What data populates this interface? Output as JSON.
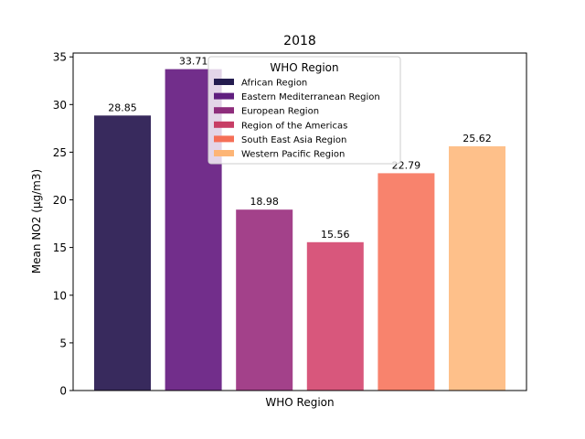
{
  "chart_data": {
    "type": "bar",
    "title": "2018",
    "xlabel": "WHO Region",
    "ylabel": "Mean NO2 (μg/m3)",
    "ylim": [
      0,
      35.4
    ],
    "yticks": [
      0,
      5,
      10,
      15,
      20,
      25,
      30,
      35
    ],
    "grid": false,
    "categories": [
      "African Region",
      "Eastern Mediterranean Region",
      "European Region",
      "Region of the Americas",
      "South East Asia Region",
      "Western Pacific Region"
    ],
    "values": [
      28.85,
      33.71,
      18.98,
      15.56,
      22.79,
      25.62
    ],
    "value_labels": [
      "28.85",
      "33.71",
      "18.98",
      "15.56",
      "22.79",
      "25.62"
    ],
    "bar_colors": [
      "#382a5d",
      "#722e8b",
      "#a3418a",
      "#d8577c",
      "#f8836d",
      "#fec08a"
    ],
    "legend": {
      "title": "WHO Region",
      "placement": "top-center",
      "swatch_colors": [
        "#241c4f",
        "#601e7f",
        "#8e2d7c",
        "#c73d65",
        "#f56f57",
        "#fdb576"
      ]
    }
  }
}
